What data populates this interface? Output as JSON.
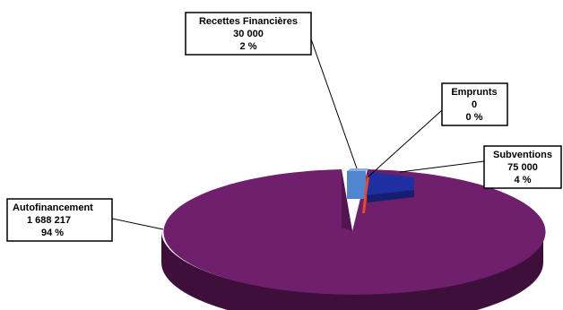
{
  "chart_data": {
    "type": "pie",
    "three_d": true,
    "title": "",
    "legend": "none",
    "slices": [
      {
        "name": "Autofinancement",
        "value_text": "1 688 217",
        "percent_text": "94 %",
        "value": 1688217,
        "percent": 94,
        "color": "#6f1f6b",
        "exploded": false
      },
      {
        "name": "Recettes Financières",
        "value_text": "30 000",
        "percent_text": "2 %",
        "value": 30000,
        "percent": 2,
        "color": "#4f86cf",
        "exploded": true
      },
      {
        "name": "Emprunts",
        "value_text": "0",
        "percent_text": "0 %",
        "value": 0,
        "percent": 0,
        "color": "#e84a22",
        "exploded": true
      },
      {
        "name": "Subventions",
        "value_text": "75 000",
        "percent_text": "4 %",
        "value": 75000,
        "percent": 4,
        "color": "#1f2ea0",
        "exploded": true
      }
    ]
  }
}
